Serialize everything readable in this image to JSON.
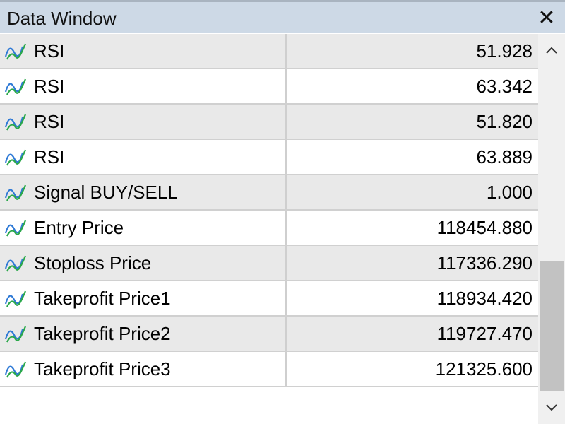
{
  "window": {
    "title": "Data Window",
    "close_symbol": "✕"
  },
  "rows": [
    {
      "name": "RSI",
      "value": "51.928",
      "icon": "indicator-line-icon"
    },
    {
      "name": "RSI",
      "value": "63.342",
      "icon": "indicator-line-icon"
    },
    {
      "name": "RSI",
      "value": "51.820",
      "icon": "indicator-line-icon"
    },
    {
      "name": "RSI",
      "value": "63.889",
      "icon": "indicator-line-icon"
    },
    {
      "name": "Signal BUY/SELL",
      "value": "1.000",
      "icon": "indicator-line-icon"
    },
    {
      "name": "Entry Price",
      "value": "118454.880",
      "icon": "indicator-line-icon"
    },
    {
      "name": "Stoploss Price",
      "value": "117336.290",
      "icon": "indicator-line-icon"
    },
    {
      "name": "Takeprofit Price1",
      "value": "118934.420",
      "icon": "indicator-line-icon"
    },
    {
      "name": "Takeprofit Price2",
      "value": "119727.470",
      "icon": "indicator-line-icon"
    },
    {
      "name": "Takeprofit Price3",
      "value": "121325.600",
      "icon": "indicator-line-icon"
    }
  ],
  "colors": {
    "title_bar": "#cdd9e6",
    "row_shaded": "#e9e9e9",
    "icon_blue": "#2f7ad6",
    "icon_green": "#2aa84a"
  },
  "scrollbar": {
    "visible_fraction": 0.4,
    "scrolled_to": "bottom"
  }
}
